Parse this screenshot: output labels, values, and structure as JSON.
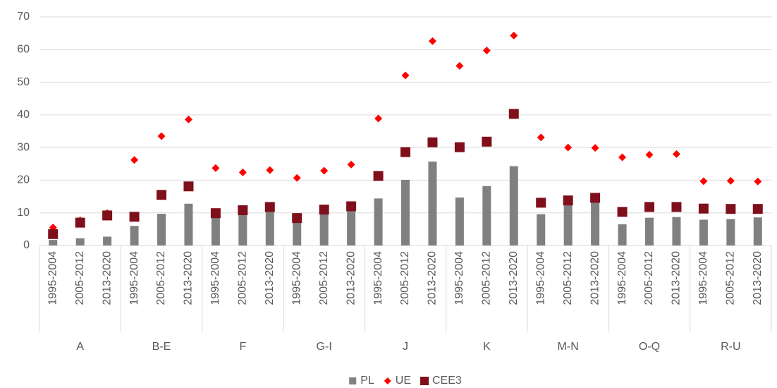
{
  "chart_data": {
    "type": "combo",
    "categories": [
      "1995-2004",
      "2005-2012",
      "2013-2020",
      "1995-2004",
      "2005-2012",
      "2013-2020",
      "1995-2004",
      "2005-2012",
      "2013-2020",
      "1995-2004",
      "2005-2012",
      "2013-2020",
      "1995-2004",
      "2005-2012",
      "2013-2020",
      "1995-2004",
      "2005-2012",
      "2013-2020",
      "1995-2004",
      "2005-2012",
      "2013-2020",
      "1995-2004",
      "2005-2012",
      "2013-2020",
      "1995-2004",
      "2005-2012",
      "2013-2020"
    ],
    "groups": [
      "A",
      "B-E",
      "F",
      "G-I",
      "J",
      "K",
      "M-N",
      "O-Q",
      "R-U"
    ],
    "series": [
      {
        "name": "PL",
        "color": "#808080",
        "marker": "bar",
        "values": [
          1.7,
          2.2,
          2.7,
          6.0,
          9.7,
          12.8,
          8.5,
          9.5,
          10.5,
          7.2,
          9.7,
          10.8,
          14.4,
          20.1,
          25.7,
          14.7,
          18.2,
          24.3,
          9.6,
          12.5,
          13.3,
          6.5,
          8.5,
          8.7,
          7.9,
          8.1,
          8.6
        ]
      },
      {
        "name": "UE",
        "color": "#ff0000",
        "marker": "diamond",
        "values": [
          5.5,
          7.7,
          9.9,
          26.2,
          33.5,
          38.6,
          23.7,
          22.4,
          23.1,
          20.7,
          22.9,
          24.8,
          38.9,
          52.1,
          62.6,
          55.0,
          59.7,
          64.3,
          33.1,
          30.0,
          29.9,
          27.0,
          27.8,
          28.0,
          19.7,
          19.8,
          19.6
        ]
      },
      {
        "name": "CEE3",
        "color": "#7f0f1a",
        "marker": "square",
        "values": [
          3.5,
          7.0,
          9.2,
          8.8,
          15.5,
          18.1,
          9.9,
          10.8,
          11.8,
          8.4,
          11.0,
          12.0,
          21.3,
          28.6,
          31.6,
          30.1,
          31.8,
          40.3,
          13.1,
          13.8,
          14.6,
          10.3,
          11.8,
          11.8,
          11.3,
          11.2,
          11.2
        ]
      }
    ],
    "ylim": [
      0,
      70
    ],
    "yticks": [
      0,
      10,
      20,
      30,
      40,
      50,
      60,
      70
    ],
    "grid": true,
    "legend": "bottom"
  }
}
